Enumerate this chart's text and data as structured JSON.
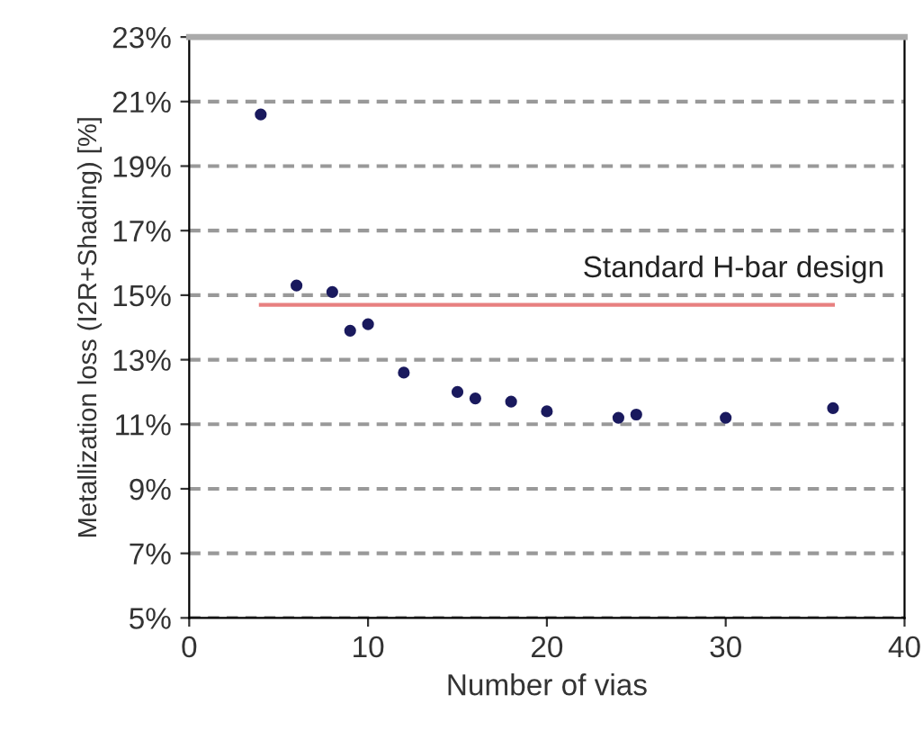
{
  "chart_data": {
    "type": "scatter",
    "xlabel": "Number of vias",
    "ylabel": "Metallization loss (I2R+Shading) [%]",
    "xlim": [
      0,
      40
    ],
    "xticks": [
      0,
      10,
      20,
      30,
      40
    ],
    "ylim": [
      5,
      23
    ],
    "yticks": [
      {
        "value": 5,
        "label": "5%"
      },
      {
        "value": 7,
        "label": "7%"
      },
      {
        "value": 9,
        "label": "9%"
      },
      {
        "value": 11,
        "label": "11%"
      },
      {
        "value": 13,
        "label": "13%"
      },
      {
        "value": 15,
        "label": "15%"
      },
      {
        "value": 17,
        "label": "17%"
      },
      {
        "value": 19,
        "label": "19%"
      },
      {
        "value": 21,
        "label": "21%"
      },
      {
        "value": 23,
        "label": "23%"
      }
    ],
    "grid": "y",
    "marker": "circle",
    "annotations": [
      "Standard H-bar design"
    ],
    "series": [
      {
        "color": "#1a1a5e",
        "x": [
          4,
          6,
          8,
          9,
          10,
          12,
          15,
          16,
          18,
          20,
          24,
          25,
          30,
          36
        ],
        "values": [
          20.6,
          15.3,
          15.1,
          13.9,
          14.1,
          12.6,
          12.0,
          11.8,
          11.7,
          11.4,
          11.2,
          11.3,
          11.2,
          11.5
        ]
      },
      {
        "type": "line",
        "color": "#e88080",
        "x": [
          4,
          36
        ],
        "values": [
          14.7,
          14.7
        ],
        "marker": "none",
        "line_style": "solid"
      }
    ]
  }
}
